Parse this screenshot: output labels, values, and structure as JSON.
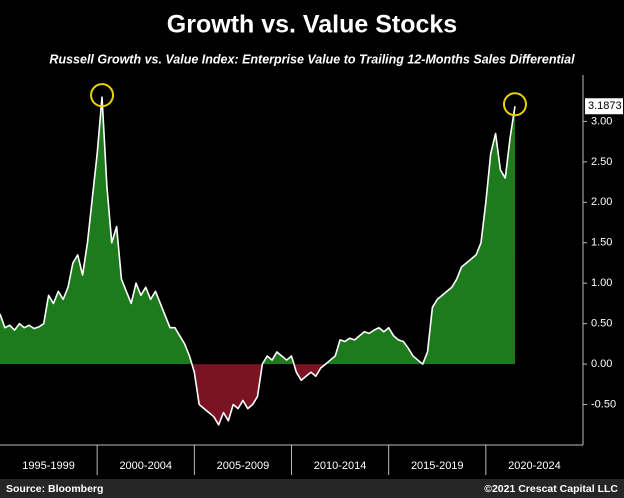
{
  "chart_data": {
    "type": "area",
    "title": "Growth vs. Value Stocks",
    "subtitle": "Russell Growth vs. Value Index: Enterprise Value to Trailing 12-Months Sales Differential",
    "source": "Source: Bloomberg",
    "copyright": "©2021 Crescat Capital LLC",
    "categories": [
      "1995-1999",
      "2000-2004",
      "2005-2009",
      "2010-2014",
      "2015-2019",
      "2020-2024"
    ],
    "values": [
      [
        0.62,
        0.45,
        0.48,
        0.42,
        0.5,
        0.45,
        0.48,
        0.44,
        0.46,
        0.5,
        0.85,
        0.75,
        0.9,
        0.8,
        0.95,
        1.25,
        1.35,
        1.1,
        1.5,
        2.05
      ],
      [
        2.6,
        3.3,
        2.2,
        1.5,
        1.7,
        1.05,
        0.9,
        0.75,
        1.0,
        0.85,
        0.95,
        0.8,
        0.9,
        0.75,
        0.6,
        0.45,
        0.45,
        0.35,
        0.25,
        0.1
      ],
      [
        -0.1,
        -0.5,
        -0.55,
        -0.6,
        -0.65,
        -0.75,
        -0.6,
        -0.7,
        -0.5,
        -0.55,
        -0.45,
        -0.55,
        -0.5,
        -0.4,
        0.0,
        0.1,
        0.05,
        0.15,
        0.1,
        0.05
      ],
      [
        0.1,
        -0.1,
        -0.2,
        -0.15,
        -0.1,
        -0.15,
        -0.05,
        0.0,
        0.05,
        0.1,
        0.3,
        0.28,
        0.32,
        0.3,
        0.35,
        0.4,
        0.38,
        0.42,
        0.45,
        0.4
      ],
      [
        0.45,
        0.35,
        0.3,
        0.28,
        0.2,
        0.1,
        0.05,
        0.0,
        0.15,
        0.7,
        0.8,
        0.85,
        0.9,
        0.95,
        1.05,
        1.2,
        1.25,
        1.3,
        1.35,
        1.5
      ],
      [
        2.0,
        2.6,
        2.85,
        2.4,
        2.3,
        2.8,
        3.1873
      ]
    ],
    "positive_color": "#1d7a1d",
    "negative_color": "#7a1422",
    "line_color": "#ffffff",
    "highlight_color": "#e8d400",
    "ylim": [
      -1,
      3.45
    ],
    "yticks": [
      {
        "value": -0.5,
        "label": "-0.50"
      },
      {
        "value": 0,
        "label": "0.00"
      },
      {
        "value": 0.5,
        "label": "0.50"
      },
      {
        "value": 1,
        "label": "1.00"
      },
      {
        "value": 1.5,
        "label": "1.50"
      },
      {
        "value": 2,
        "label": "2.00"
      },
      {
        "value": 2.5,
        "label": "2.50"
      },
      {
        "value": 3,
        "label": "3.00"
      }
    ],
    "grid": false
  }
}
